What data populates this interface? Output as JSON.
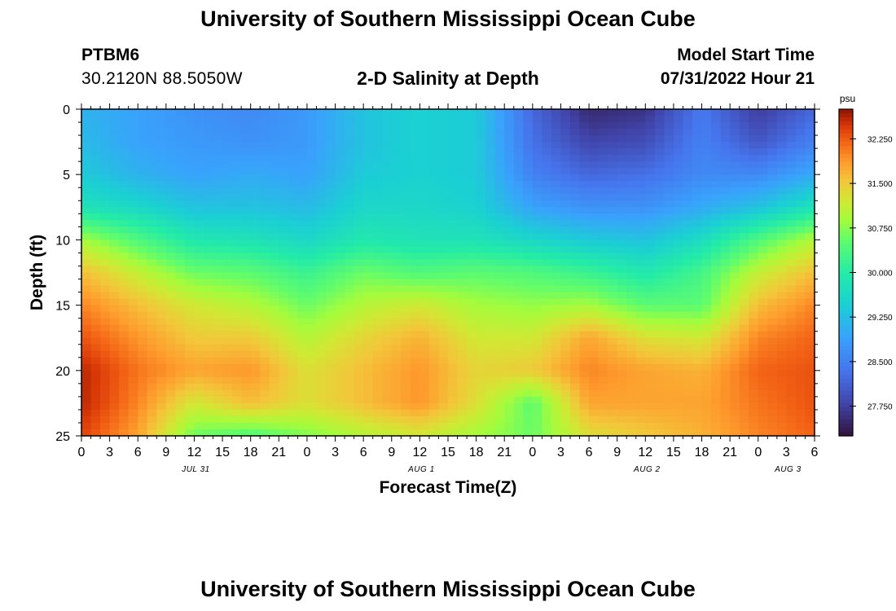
{
  "header": {
    "title": "University of Southern Mississippi Ocean Cube",
    "station": "PTBM6",
    "coordinates": "30.2120N  88.5050W",
    "chart_title": "2-D Salinity at Depth",
    "model_label": "Model Start Time",
    "model_time": "07/31/2022 Hour 21"
  },
  "footer": {
    "title": "University of Southern Mississippi Ocean Cube"
  },
  "chart_data": {
    "type": "heatmap",
    "title": "2-D Salinity at Depth",
    "xlabel": "Forecast Time(Z)",
    "ylabel": "Depth (ft)",
    "x_hours_range": [
      0,
      78
    ],
    "x_tick_labels": [
      "0",
      "3",
      "6",
      "9",
      "12",
      "15",
      "18",
      "21",
      "0",
      "3",
      "6",
      "9",
      "12",
      "15",
      "18",
      "21",
      "0",
      "3",
      "6",
      "9",
      "12",
      "15",
      "18",
      "21",
      "0",
      "3",
      "6"
    ],
    "date_labels": [
      {
        "label": "JUL 31",
        "hour": 12
      },
      {
        "label": "AUG 1",
        "hour": 36
      },
      {
        "label": "AUG 2",
        "hour": 60
      },
      {
        "label": "AUG 3",
        "hour": 75
      }
    ],
    "y_range": [
      0,
      25
    ],
    "y_ticks": [
      0,
      5,
      10,
      15,
      20,
      25
    ],
    "colorbar": {
      "unit": "psu",
      "min": 27.25,
      "max": 32.75,
      "tick_values": [
        27.75,
        28.5,
        29.25,
        30.0,
        30.75,
        31.5,
        32.25
      ],
      "tick_labels": [
        "27.750",
        "28.500",
        "29.250",
        "30.000",
        "30.750",
        "31.500",
        "32.250"
      ]
    },
    "time_hours": [
      0,
      6,
      12,
      18,
      24,
      30,
      36,
      42,
      48,
      54,
      60,
      66,
      72,
      78
    ],
    "depth_ft": [
      0,
      2.5,
      5,
      7.5,
      10,
      12.5,
      15,
      17.5,
      20,
      22.5,
      25
    ],
    "salinity_psu": [
      [
        29.1,
        28.9,
        28.7,
        28.6,
        28.8,
        29.3,
        29.5,
        29.4,
        28.2,
        27.5,
        27.6,
        28.4,
        27.7,
        28.2
      ],
      [
        29.2,
        28.9,
        28.8,
        28.7,
        28.8,
        29.3,
        29.5,
        29.4,
        28.3,
        27.8,
        27.9,
        28.5,
        28.0,
        28.5
      ],
      [
        29.4,
        29.1,
        28.9,
        29.0,
        28.9,
        29.4,
        29.5,
        29.4,
        28.5,
        28.2,
        28.3,
        28.6,
        28.6,
        29.0
      ],
      [
        29.8,
        29.6,
        29.3,
        29.3,
        29.2,
        29.6,
        29.6,
        29.5,
        28.9,
        28.7,
        28.7,
        29.0,
        29.3,
        29.8
      ],
      [
        30.9,
        30.4,
        29.9,
        29.8,
        29.6,
        29.9,
        29.8,
        29.8,
        29.6,
        29.4,
        29.3,
        29.7,
        30.4,
        31.0
      ],
      [
        31.6,
        31.1,
        30.6,
        30.5,
        30.2,
        30.6,
        30.4,
        30.5,
        30.4,
        30.2,
        29.9,
        30.3,
        31.1,
        31.6
      ],
      [
        32.0,
        31.6,
        31.2,
        31.0,
        30.6,
        31.0,
        31.2,
        30.9,
        30.8,
        30.9,
        30.5,
        30.5,
        31.6,
        32.0
      ],
      [
        32.3,
        31.9,
        31.5,
        31.5,
        31.0,
        31.4,
        31.7,
        31.2,
        31.2,
        31.8,
        31.3,
        31.2,
        32.0,
        32.2
      ],
      [
        32.6,
        32.1,
        31.8,
        31.9,
        31.3,
        31.6,
        31.9,
        31.4,
        31.5,
        32.0,
        31.8,
        31.7,
        32.2,
        32.3
      ],
      [
        32.6,
        32.0,
        31.2,
        31.6,
        31.3,
        31.6,
        31.9,
        31.3,
        30.5,
        31.8,
        31.8,
        31.8,
        32.1,
        32.3
      ],
      [
        32.4,
        31.8,
        30.6,
        30.4,
        30.7,
        31.0,
        31.2,
        30.9,
        30.6,
        31.3,
        31.5,
        31.7,
        32.0,
        32.2
      ]
    ]
  }
}
